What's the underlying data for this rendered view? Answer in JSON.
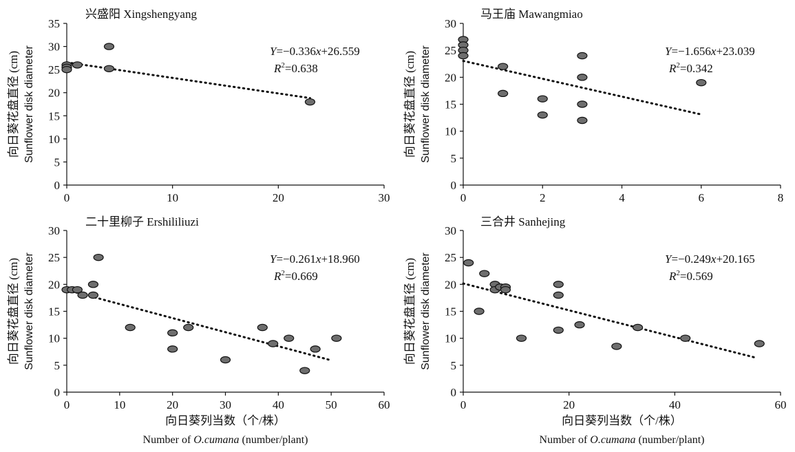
{
  "chart_data": [
    {
      "type": "scatter",
      "title": "兴盛阳 Xingshengyang",
      "ylabel_cn": "向日葵花盘直径 (cm)",
      "ylabel_en": "Sunflower disk diameter",
      "xlim": [
        0,
        30
      ],
      "ylim": [
        0,
        35
      ],
      "xticks": [
        0,
        10,
        20,
        30
      ],
      "yticks": [
        0,
        5,
        10,
        15,
        20,
        25,
        30,
        35
      ],
      "equation": {
        "y_sym": "Y",
        "x_sym": "x",
        "text_a": "=−0.336",
        "text_b": "+26.559",
        "r2_sym": "R",
        "r2_text": "=0.638"
      },
      "trendline": {
        "slope": -0.336,
        "intercept": 26.559,
        "x_range": [
          0,
          23
        ]
      },
      "points": [
        {
          "x": 0,
          "y": 26
        },
        {
          "x": 0,
          "y": 25.5
        },
        {
          "x": 0,
          "y": 25
        },
        {
          "x": 1,
          "y": 26
        },
        {
          "x": 4,
          "y": 30
        },
        {
          "x": 4,
          "y": 25.2
        },
        {
          "x": 23,
          "y": 18
        }
      ]
    },
    {
      "type": "scatter",
      "title": "马王庙 Mawangmiao",
      "ylabel_cn": "向日葵花盘直径 (cm)",
      "ylabel_en": "Sunflower disk diameter",
      "xlim": [
        0,
        8
      ],
      "ylim": [
        0,
        30
      ],
      "xticks": [
        0,
        2,
        4,
        6,
        8
      ],
      "yticks": [
        0,
        5,
        10,
        15,
        20,
        25,
        30
      ],
      "equation": {
        "y_sym": "Y",
        "x_sym": "x",
        "text_a": "=−1.656",
        "text_b": "+23.039",
        "r2_sym": "R",
        "r2_text": "=0.342"
      },
      "trendline": {
        "slope": -1.656,
        "intercept": 23.039,
        "x_range": [
          0,
          6
        ]
      },
      "points": [
        {
          "x": 0,
          "y": 27
        },
        {
          "x": 0,
          "y": 26
        },
        {
          "x": 0,
          "y": 25
        },
        {
          "x": 0,
          "y": 24
        },
        {
          "x": 1,
          "y": 22
        },
        {
          "x": 1,
          "y": 17
        },
        {
          "x": 2,
          "y": 16
        },
        {
          "x": 2,
          "y": 13
        },
        {
          "x": 3,
          "y": 24
        },
        {
          "x": 3,
          "y": 20
        },
        {
          "x": 3,
          "y": 15
        },
        {
          "x": 3,
          "y": 12
        },
        {
          "x": 6,
          "y": 19
        }
      ]
    },
    {
      "type": "scatter",
      "title": "二十里柳子 Ershililiuzi",
      "ylabel_cn": "向日葵花盘直径 (cm)",
      "ylabel_en": "Sunflower disk diameter",
      "xlim": [
        0,
        60
      ],
      "ylim": [
        0,
        30
      ],
      "xticks": [
        0,
        10,
        20,
        30,
        40,
        50,
        60
      ],
      "yticks": [
        0,
        5,
        10,
        15,
        20,
        25,
        30
      ],
      "equation": {
        "y_sym": "Y",
        "x_sym": "x",
        "text_a": "=−0.261",
        "text_b": "+18.960",
        "r2_sym": "R",
        "r2_text": "=0.669"
      },
      "trendline": {
        "slope": -0.261,
        "intercept": 18.96,
        "x_range": [
          0,
          50
        ]
      },
      "points": [
        {
          "x": 0,
          "y": 19
        },
        {
          "x": 1,
          "y": 19
        },
        {
          "x": 2,
          "y": 19
        },
        {
          "x": 3,
          "y": 18
        },
        {
          "x": 5,
          "y": 20
        },
        {
          "x": 5,
          "y": 18
        },
        {
          "x": 6,
          "y": 25
        },
        {
          "x": 12,
          "y": 12
        },
        {
          "x": 20,
          "y": 11
        },
        {
          "x": 20,
          "y": 8
        },
        {
          "x": 23,
          "y": 12
        },
        {
          "x": 30,
          "y": 6
        },
        {
          "x": 37,
          "y": 12
        },
        {
          "x": 39,
          "y": 9
        },
        {
          "x": 42,
          "y": 10
        },
        {
          "x": 45,
          "y": 4
        },
        {
          "x": 47,
          "y": 8
        },
        {
          "x": 51,
          "y": 10
        }
      ]
    },
    {
      "type": "scatter",
      "title": "三合井 Sanhejing",
      "ylabel_cn": "向日葵花盘直径 (cm)",
      "ylabel_en": "Sunflower disk diameter",
      "xlim": [
        0,
        60
      ],
      "ylim": [
        0,
        30
      ],
      "xticks": [
        0,
        20,
        40,
        60
      ],
      "yticks": [
        0,
        5,
        10,
        15,
        20,
        25,
        30
      ],
      "equation": {
        "y_sym": "Y",
        "x_sym": "x",
        "text_a": "=−0.249",
        "text_b": "+20.165",
        "r2_sym": "R",
        "r2_text": "=0.569"
      },
      "trendline": {
        "slope": -0.249,
        "intercept": 20.165,
        "x_range": [
          0,
          55
        ]
      },
      "points": [
        {
          "x": 1,
          "y": 24
        },
        {
          "x": 3,
          "y": 15
        },
        {
          "x": 4,
          "y": 22
        },
        {
          "x": 6,
          "y": 20
        },
        {
          "x": 6,
          "y": 19
        },
        {
          "x": 7,
          "y": 19.5
        },
        {
          "x": 8,
          "y": 19.5
        },
        {
          "x": 8,
          "y": 19
        },
        {
          "x": 11,
          "y": 10
        },
        {
          "x": 18,
          "y": 20
        },
        {
          "x": 18,
          "y": 18
        },
        {
          "x": 18,
          "y": 11.5
        },
        {
          "x": 22,
          "y": 12.5
        },
        {
          "x": 29,
          "y": 8.5
        },
        {
          "x": 33,
          "y": 12
        },
        {
          "x": 42,
          "y": 10
        },
        {
          "x": 56,
          "y": 9
        }
      ]
    }
  ],
  "xlabel_cn": "向日葵列当数（个/株）",
  "xlabel_en": {
    "prefix": "Number of ",
    "italic": "O.cumana",
    "suffix": " (number/plant)"
  },
  "colors": {
    "point_fill": "#6e6e6e",
    "point_stroke": "#111111",
    "axis": "#111111",
    "trendline": "#111111"
  }
}
